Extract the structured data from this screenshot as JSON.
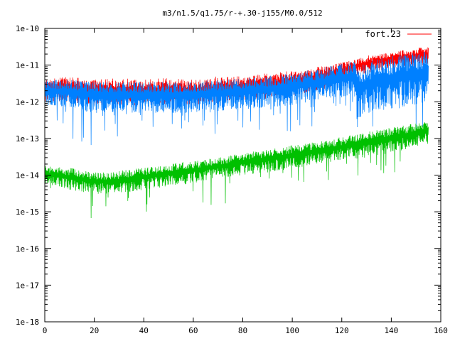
{
  "chart_data": {
    "type": "line",
    "title": "m3/n1.5/q1.75/r-+.30-j155/M0.0/512",
    "xlim": [
      0,
      160
    ],
    "ylim": [
      1e-18,
      1e-10
    ],
    "y_scale": "log",
    "x_ticks": [
      "0",
      "20",
      "40",
      "60",
      "80",
      "100",
      "120",
      "140",
      "160"
    ],
    "y_ticks": [
      "1e-18",
      "1e-17",
      "1e-16",
      "1e-15",
      "1e-14",
      "1e-13",
      "1e-12",
      "1e-11",
      "1e-10"
    ],
    "grid": false,
    "legend_position": "top-right",
    "series": [
      {
        "name": "fort.23",
        "color": "#ff0000",
        "x_range": [
          0,
          155
        ],
        "envelope": {
          "x": [
            0,
            10,
            20,
            30,
            40,
            50,
            60,
            70,
            80,
            90,
            100,
            110,
            120,
            125,
            130,
            140,
            150,
            155
          ],
          "upper": [
            4e-12,
            5e-12,
            4e-12,
            4.5e-12,
            4e-12,
            4.5e-12,
            4e-12,
            5e-12,
            5e-12,
            6e-12,
            7e-12,
            9e-12,
            1.2e-11,
            1.4e-11,
            1.8e-11,
            2.2e-11,
            3e-11,
            3.2e-11
          ],
          "lower": [
            1e-12,
            1e-12,
            8e-13,
            8e-13,
            8e-13,
            8e-13,
            8e-13,
            9e-13,
            1e-12,
            1.2e-12,
            1.4e-12,
            2e-12,
            3e-12,
            5e-12,
            6e-12,
            8e-12,
            9e-12,
            1e-11
          ]
        }
      },
      {
        "name": "",
        "color": "#0080ff",
        "x_range": [
          0,
          155
        ],
        "envelope": {
          "x": [
            0,
            10,
            20,
            30,
            40,
            50,
            60,
            70,
            80,
            90,
            100,
            110,
            120,
            125,
            126,
            130,
            140,
            150,
            155
          ],
          "upper": [
            4e-12,
            4e-12,
            3.5e-12,
            3.5e-12,
            3.5e-12,
            3.5e-12,
            3.5e-12,
            4e-12,
            4.5e-12,
            5e-12,
            6e-12,
            8e-12,
            1.1e-11,
            1.3e-11,
            1.1e-11,
            1.3e-11,
            1.8e-11,
            2.2e-11,
            2.5e-11
          ],
          "lower": [
            8e-13,
            7e-13,
            5e-13,
            5e-13,
            5e-13,
            5e-13,
            5e-13,
            5e-13,
            6e-13,
            7e-13,
            8e-13,
            1e-12,
            1.2e-12,
            1.5e-12,
            3e-13,
            4e-13,
            6e-13,
            8e-13,
            1e-12
          ],
          "spike_min": [
            1e-13,
            1e-13,
            5e-14,
            1e-13,
            1e-13,
            1e-13,
            1e-13,
            1e-13,
            1e-13,
            1.5e-13,
            1.5e-13,
            2e-13,
            3e-13,
            4e-13,
            8e-14,
            8e-14,
            1e-13,
            1.5e-13,
            2e-13
          ]
        }
      },
      {
        "name": "",
        "color": "#00c000",
        "x_range": [
          0,
          155
        ],
        "envelope": {
          "x": [
            0,
            10,
            20,
            30,
            40,
            50,
            60,
            70,
            80,
            90,
            100,
            110,
            120,
            130,
            140,
            150,
            155
          ],
          "upper": [
            1.8e-14,
            1.6e-14,
            1.2e-14,
            1.3e-14,
            1.6e-14,
            2e-14,
            2.5e-14,
            3e-14,
            4e-14,
            5e-14,
            6.5e-14,
            8e-14,
            1.1e-13,
            1.5e-13,
            2e-13,
            2.6e-13,
            3e-13
          ],
          "lower": [
            6e-15,
            4e-15,
            3e-15,
            3e-15,
            4e-15,
            5e-15,
            6e-15,
            8e-15,
            1e-14,
            1.2e-14,
            1.5e-14,
            2e-14,
            2.5e-14,
            3e-14,
            4e-14,
            6e-14,
            7e-14
          ],
          "spike_min": [
            2e-15,
            1e-15,
            5e-16,
            8e-16,
            1e-15,
            1e-15,
            1e-15,
            1.5e-15,
            2e-15,
            3e-15,
            3e-15,
            4e-15,
            5e-15,
            6e-15,
            8e-15,
            1e-14,
            1.5e-14
          ]
        }
      }
    ]
  }
}
